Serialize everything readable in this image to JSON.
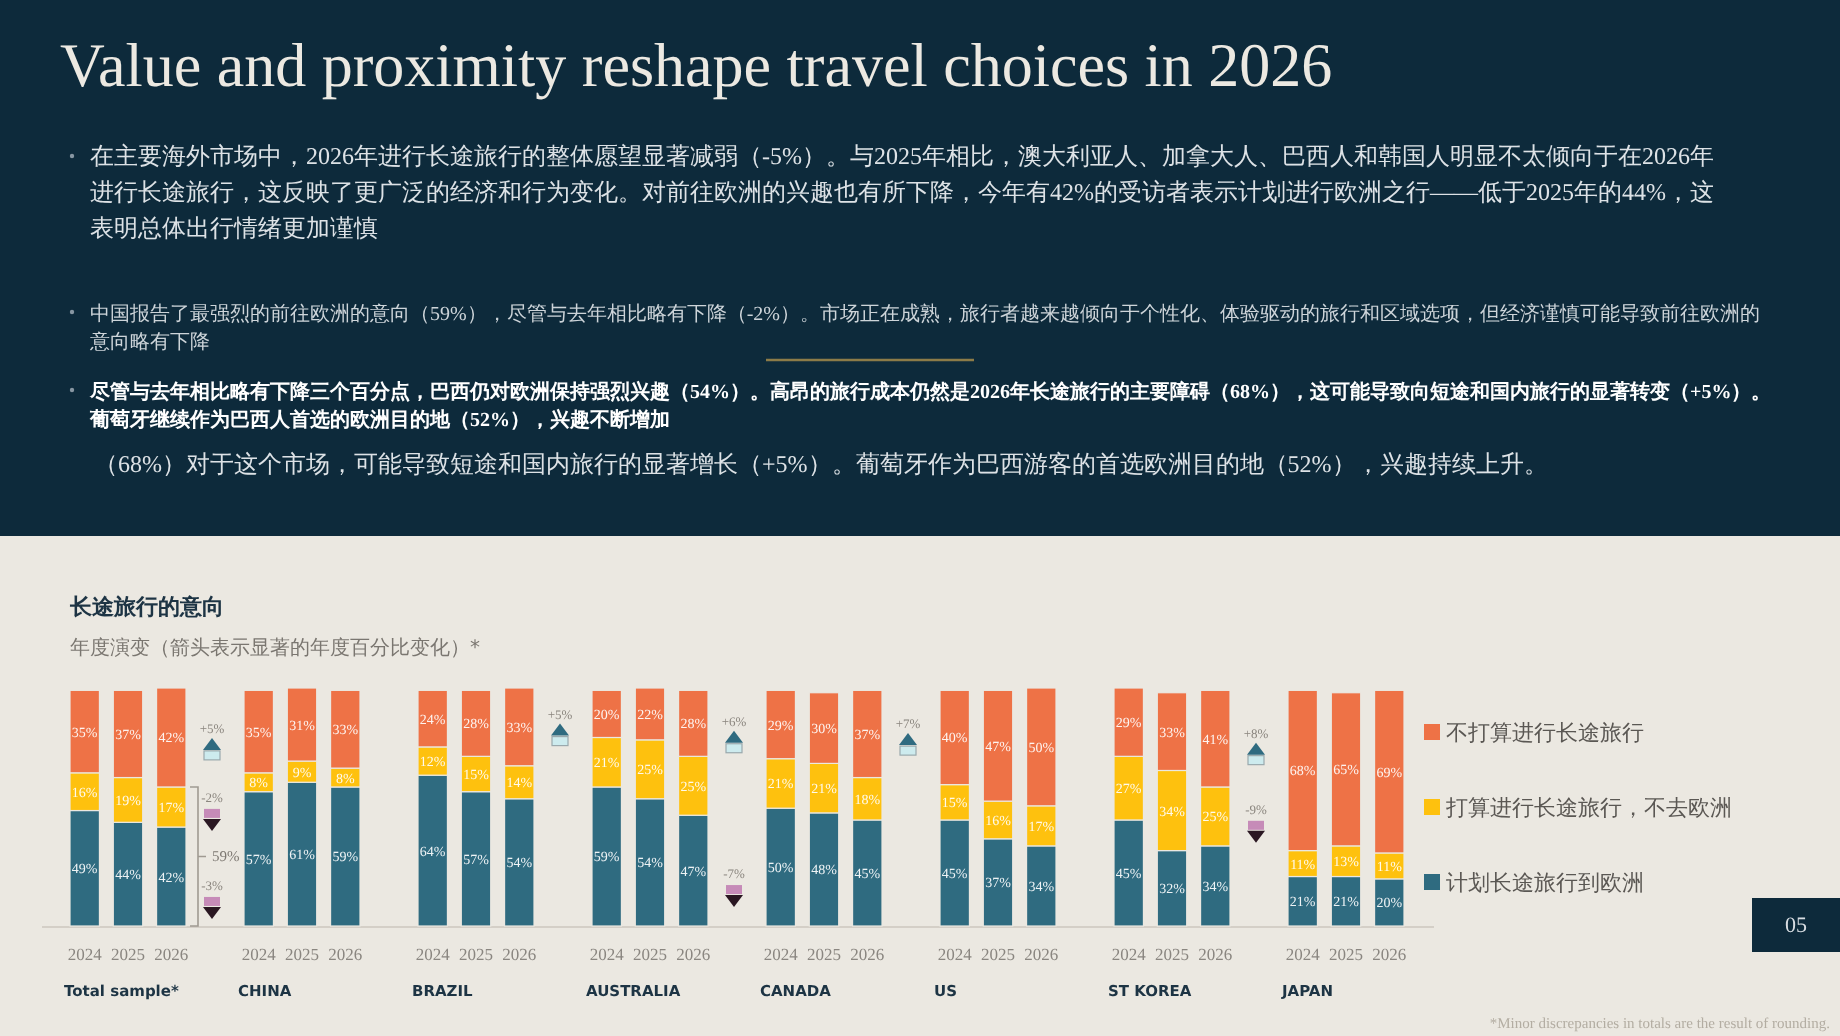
{
  "chart_data": [
    {
      "type": "other",
      "title": "Value and proximity reshape travel choices in 2026",
      "annotations": [
        "在主要海外市场中，2026年进行长途旅行的整体愿望显著减弱（-5%）。与2025年相比，澳大利亚人、加拿大人、巴西人和韩国人明显不太倾向于在2026年进行长途旅行，这反映了更广泛的经济和行为变化。对前往欧洲的兴趣也有所下降，今年有42%的受访者表示计划进行欧洲之行——低于2025年的44%，这表明总体出行情绪更加谨慎",
        "中国报告了最强烈的前往欧洲的意向（59%），尽管与去年相比略有下降（-2%）。市场正在成熟，旅行者越来越倾向于个性化、体验驱动的旅行和区域选项，但经济谨慎可能导致前往欧洲的意向略有下降",
        "尽管与去年相比略有下降三个百分点，巴西仍对欧洲保持强烈兴趣（54%）。高昂的旅行成本仍然是2026年长途旅行的主要障碍（68%），这可能导致向短途和国内旅行的显著转变（+5%）。葡萄牙继续作为巴西人首选的欧洲目的地（52%），兴趣不断增加",
        "（68%）对于这个市场，可能导致短途和国内旅行的显著增长（+5%）。葡萄牙作为巴西游客的首选欧洲目的地（52%），兴趣持续上升。",
        "*Minor discrepancies in totals are the result of rounding.",
        "05"
      ]
    },
    {
      "type": "bar",
      "title": "长途旅行的意向",
      "subtitle": "年度演变（箭头表示显著的年度百分比变化）*",
      "xlabel": "Total sample*",
      "categories": [
        "2024",
        "2025",
        "2026"
      ],
      "stacked": true,
      "ylim": [
        0,
        101
      ],
      "tick_labels": "x",
      "series": [
        {
          "color": "#2f6b80",
          "values": [
            49,
            44,
            42
          ],
          "value_labels": [
            "49%",
            "44%",
            "42%"
          ]
        },
        {
          "color": "#fec10e",
          "values": [
            16,
            19,
            17
          ],
          "value_labels": [
            "16%",
            "19%",
            "17%"
          ]
        },
        {
          "color": "#ee7246",
          "values": [
            35,
            37,
            42
          ],
          "value_labels": [
            "35%",
            "37%",
            "42%"
          ]
        }
      ],
      "annotations": [
        "+5%",
        "-2%",
        "59%",
        "-3%"
      ]
    },
    {
      "type": "bar",
      "xlabel": "CHINA",
      "categories": [
        "2024",
        "2025",
        "2026"
      ],
      "stacked": true,
      "ylim": [
        0,
        101
      ],
      "tick_labels": "x",
      "series": [
        {
          "color": "#2f6b80",
          "values": [
            57,
            61,
            59
          ],
          "value_labels": [
            "57%",
            "61%",
            "59%"
          ]
        },
        {
          "color": "#fec10e",
          "values": [
            8,
            9,
            8
          ],
          "value_labels": [
            "8%",
            "9%",
            "8%"
          ]
        },
        {
          "color": "#ee7246",
          "values": [
            35,
            31,
            33
          ],
          "value_labels": [
            "35%",
            "31%",
            "33%"
          ]
        }
      ]
    },
    {
      "type": "bar",
      "xlabel": "BRAZIL",
      "categories": [
        "2024",
        "2025",
        "2026"
      ],
      "stacked": true,
      "ylim": [
        0,
        101
      ],
      "tick_labels": "x",
      "series": [
        {
          "color": "#2f6b80",
          "values": [
            64,
            57,
            54
          ],
          "value_labels": [
            "64%",
            "57%",
            "54%"
          ]
        },
        {
          "color": "#fec10e",
          "values": [
            12,
            15,
            14
          ],
          "value_labels": [
            "12%",
            "15%",
            "14%"
          ]
        },
        {
          "color": "#ee7246",
          "values": [
            24,
            28,
            33
          ],
          "value_labels": [
            "24%",
            "28%",
            "33%"
          ]
        }
      ],
      "annotations": [
        "+5%"
      ]
    },
    {
      "type": "bar",
      "xlabel": "AUSTRALIA",
      "categories": [
        "2024",
        "2025",
        "2026"
      ],
      "stacked": true,
      "ylim": [
        0,
        101
      ],
      "tick_labels": "x",
      "series": [
        {
          "color": "#2f6b80",
          "values": [
            59,
            54,
            47
          ],
          "value_labels": [
            "59%",
            "54%",
            "47%"
          ]
        },
        {
          "color": "#fec10e",
          "values": [
            21,
            25,
            25
          ],
          "value_labels": [
            "21%",
            "25%",
            "25%"
          ]
        },
        {
          "color": "#ee7246",
          "values": [
            20,
            22,
            28
          ],
          "value_labels": [
            "20%",
            "22%",
            "28%"
          ]
        }
      ],
      "annotations": [
        "+6%",
        "-7%"
      ]
    },
    {
      "type": "bar",
      "xlabel": "CANADA",
      "categories": [
        "2024",
        "2025",
        "2026"
      ],
      "stacked": true,
      "ylim": [
        0,
        101
      ],
      "tick_labels": "x",
      "series": [
        {
          "color": "#2f6b80",
          "values": [
            50,
            48,
            45
          ],
          "value_labels": [
            "50%",
            "48%",
            "45%"
          ]
        },
        {
          "color": "#fec10e",
          "values": [
            21,
            21,
            18
          ],
          "value_labels": [
            "21%",
            "21%",
            "18%"
          ]
        },
        {
          "color": "#ee7246",
          "values": [
            29,
            30,
            37
          ],
          "value_labels": [
            "29%",
            "30%",
            "37%"
          ]
        }
      ],
      "annotations": [
        "+7%"
      ]
    },
    {
      "type": "bar",
      "xlabel": "US",
      "categories": [
        "2024",
        "2025",
        "2026"
      ],
      "stacked": true,
      "ylim": [
        0,
        101
      ],
      "tick_labels": "x",
      "series": [
        {
          "color": "#2f6b80",
          "values": [
            45,
            37,
            34
          ],
          "value_labels": [
            "45%",
            "37%",
            "34%"
          ]
        },
        {
          "color": "#fec10e",
          "values": [
            15,
            16,
            17
          ],
          "value_labels": [
            "15%",
            "16%",
            "17%"
          ]
        },
        {
          "color": "#ee7246",
          "values": [
            40,
            47,
            50
          ],
          "value_labels": [
            "40%",
            "47%",
            "50%"
          ]
        }
      ]
    },
    {
      "type": "bar",
      "xlabel": "ST KOREA",
      "categories": [
        "2024",
        "2025",
        "2026"
      ],
      "stacked": true,
      "ylim": [
        0,
        101
      ],
      "tick_labels": "x",
      "series": [
        {
          "color": "#2f6b80",
          "values": [
            45,
            32,
            34
          ],
          "value_labels": [
            "45%",
            "32%",
            "34%"
          ]
        },
        {
          "color": "#fec10e",
          "values": [
            27,
            34,
            25
          ],
          "value_labels": [
            "27%",
            "34%",
            "25%"
          ]
        },
        {
          "color": "#ee7246",
          "values": [
            29,
            33,
            41
          ],
          "value_labels": [
            "29%",
            "33%",
            "41%"
          ]
        }
      ],
      "annotations": [
        "+8%",
        "-9%"
      ]
    },
    {
      "type": "bar",
      "xlabel": "JAPAN",
      "categories": [
        "2024",
        "2025",
        "2026"
      ],
      "stacked": true,
      "ylim": [
        0,
        101
      ],
      "tick_labels": "x",
      "legend": "right",
      "series": [
        {
          "name": "计划长途旅行到欧洲",
          "color": "#2f6b80",
          "values": [
            21,
            21,
            20
          ],
          "value_labels": [
            "21%",
            "21%",
            "20%"
          ]
        },
        {
          "name": "打算进行长途旅行，不去欧洲",
          "color": "#fec10e",
          "values": [
            11,
            13,
            11
          ],
          "value_labels": [
            "11%",
            "13%",
            "11%"
          ]
        },
        {
          "name": "不打算进行长途旅行",
          "color": "#ee7246",
          "values": [
            68,
            65,
            69
          ],
          "value_labels": [
            "68%",
            "65%",
            "69%"
          ]
        }
      ]
    }
  ]
}
